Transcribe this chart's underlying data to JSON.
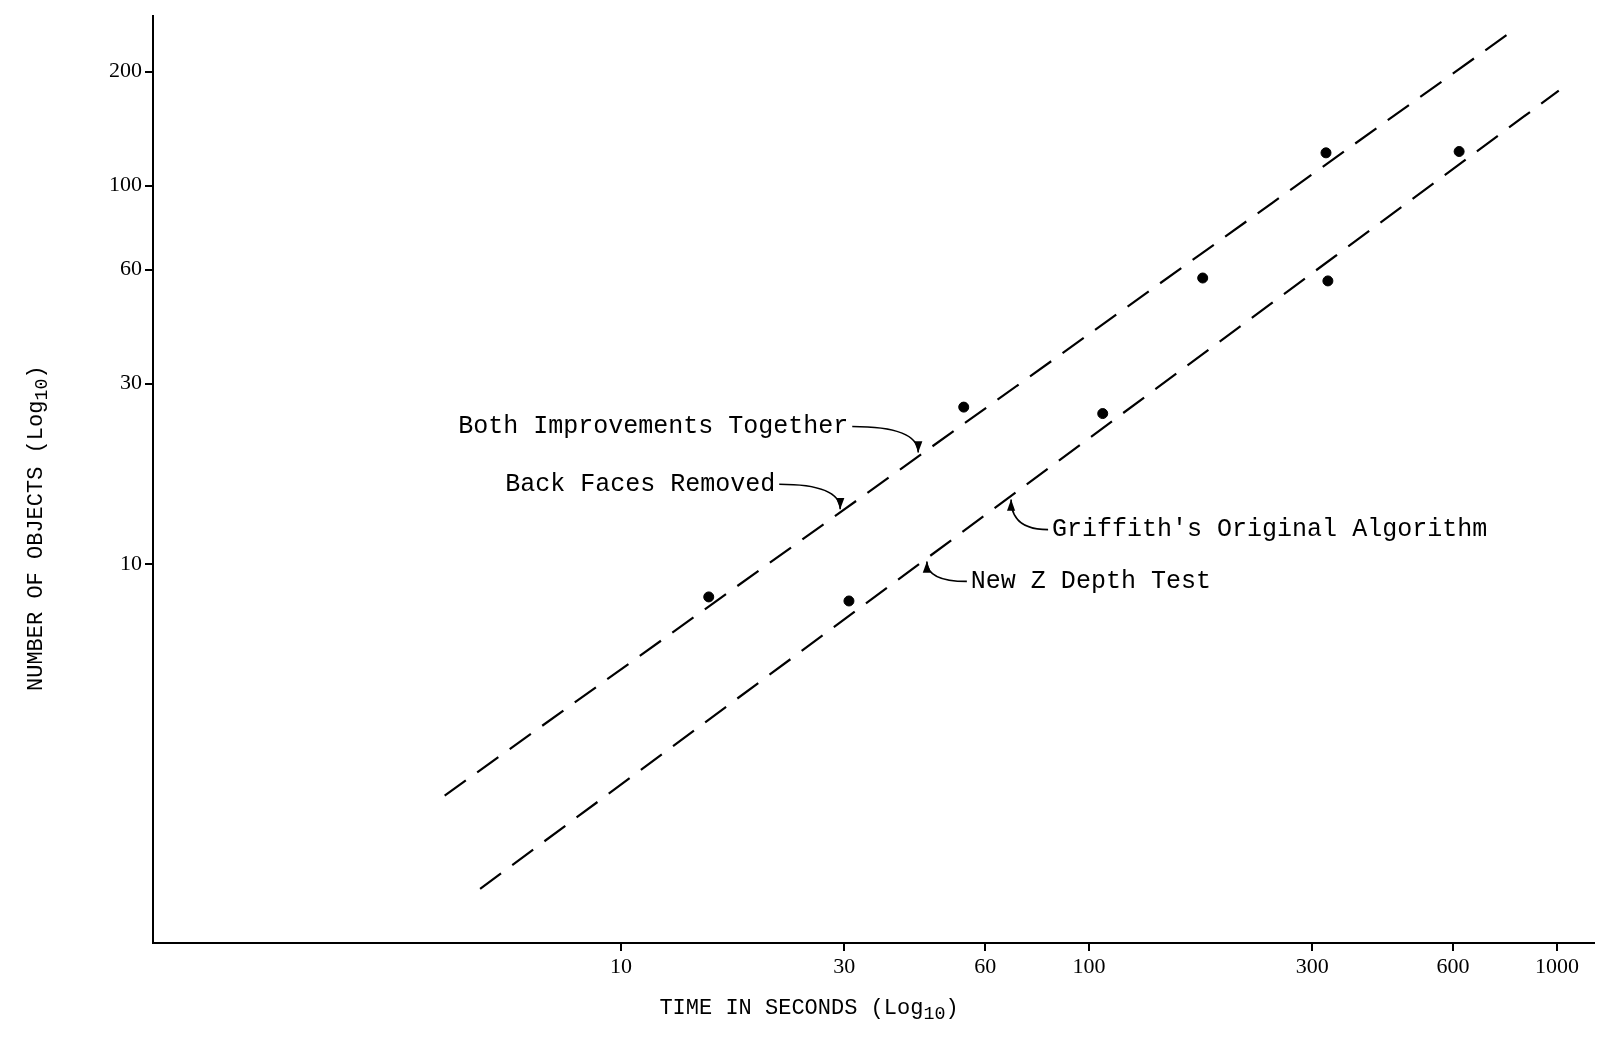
{
  "chart_data": {
    "type": "scatter",
    "xlabel": "TIME IN SECONDS (Log$_{10}$)",
    "ylabel": "NUMBER OF OBJECTS (Log$_{10}$)",
    "log": "xy",
    "grid": false,
    "legend": false,
    "marker": "circle",
    "xlim": [
      1,
      1200
    ],
    "xticks": [
      10,
      30,
      60,
      100,
      300,
      600,
      1000
    ],
    "ylim": [
      1,
      280
    ],
    "yticks": [
      10,
      30,
      60,
      100,
      200
    ],
    "series": [
      {
        "color": "#000000",
        "x": [
          15.4,
          30.7,
          54,
          107,
          175,
          324,
          321,
          618
        ],
        "values": [
          8.2,
          8.0,
          26,
          25,
          57,
          56,
          122,
          123
        ]
      },
      {
        "type": "line",
        "color": "#000000",
        "line_style": "dashed",
        "marker": "none",
        "x": [
          4.2,
          782
        ],
        "values": [
          2.45,
          250
        ]
      },
      {
        "type": "line",
        "color": "#000000",
        "line_style": "dashed",
        "marker": "none",
        "x": [
          5.0,
          1009
        ],
        "values": [
          1.39,
          178
        ]
      }
    ],
    "annotations": [
      {
        "text": "Both Improvements Together",
        "x": 43.6,
        "y": 19.5
      },
      {
        "text": "Back Faces Removed",
        "x": 29.7,
        "y": 13.8
      },
      {
        "text": "Griffith's Original Algorithm",
        "x": 67.5,
        "y": 15.0
      },
      {
        "text": "New Z Depth Test",
        "x": 44.6,
        "y": 10.3
      }
    ]
  }
}
